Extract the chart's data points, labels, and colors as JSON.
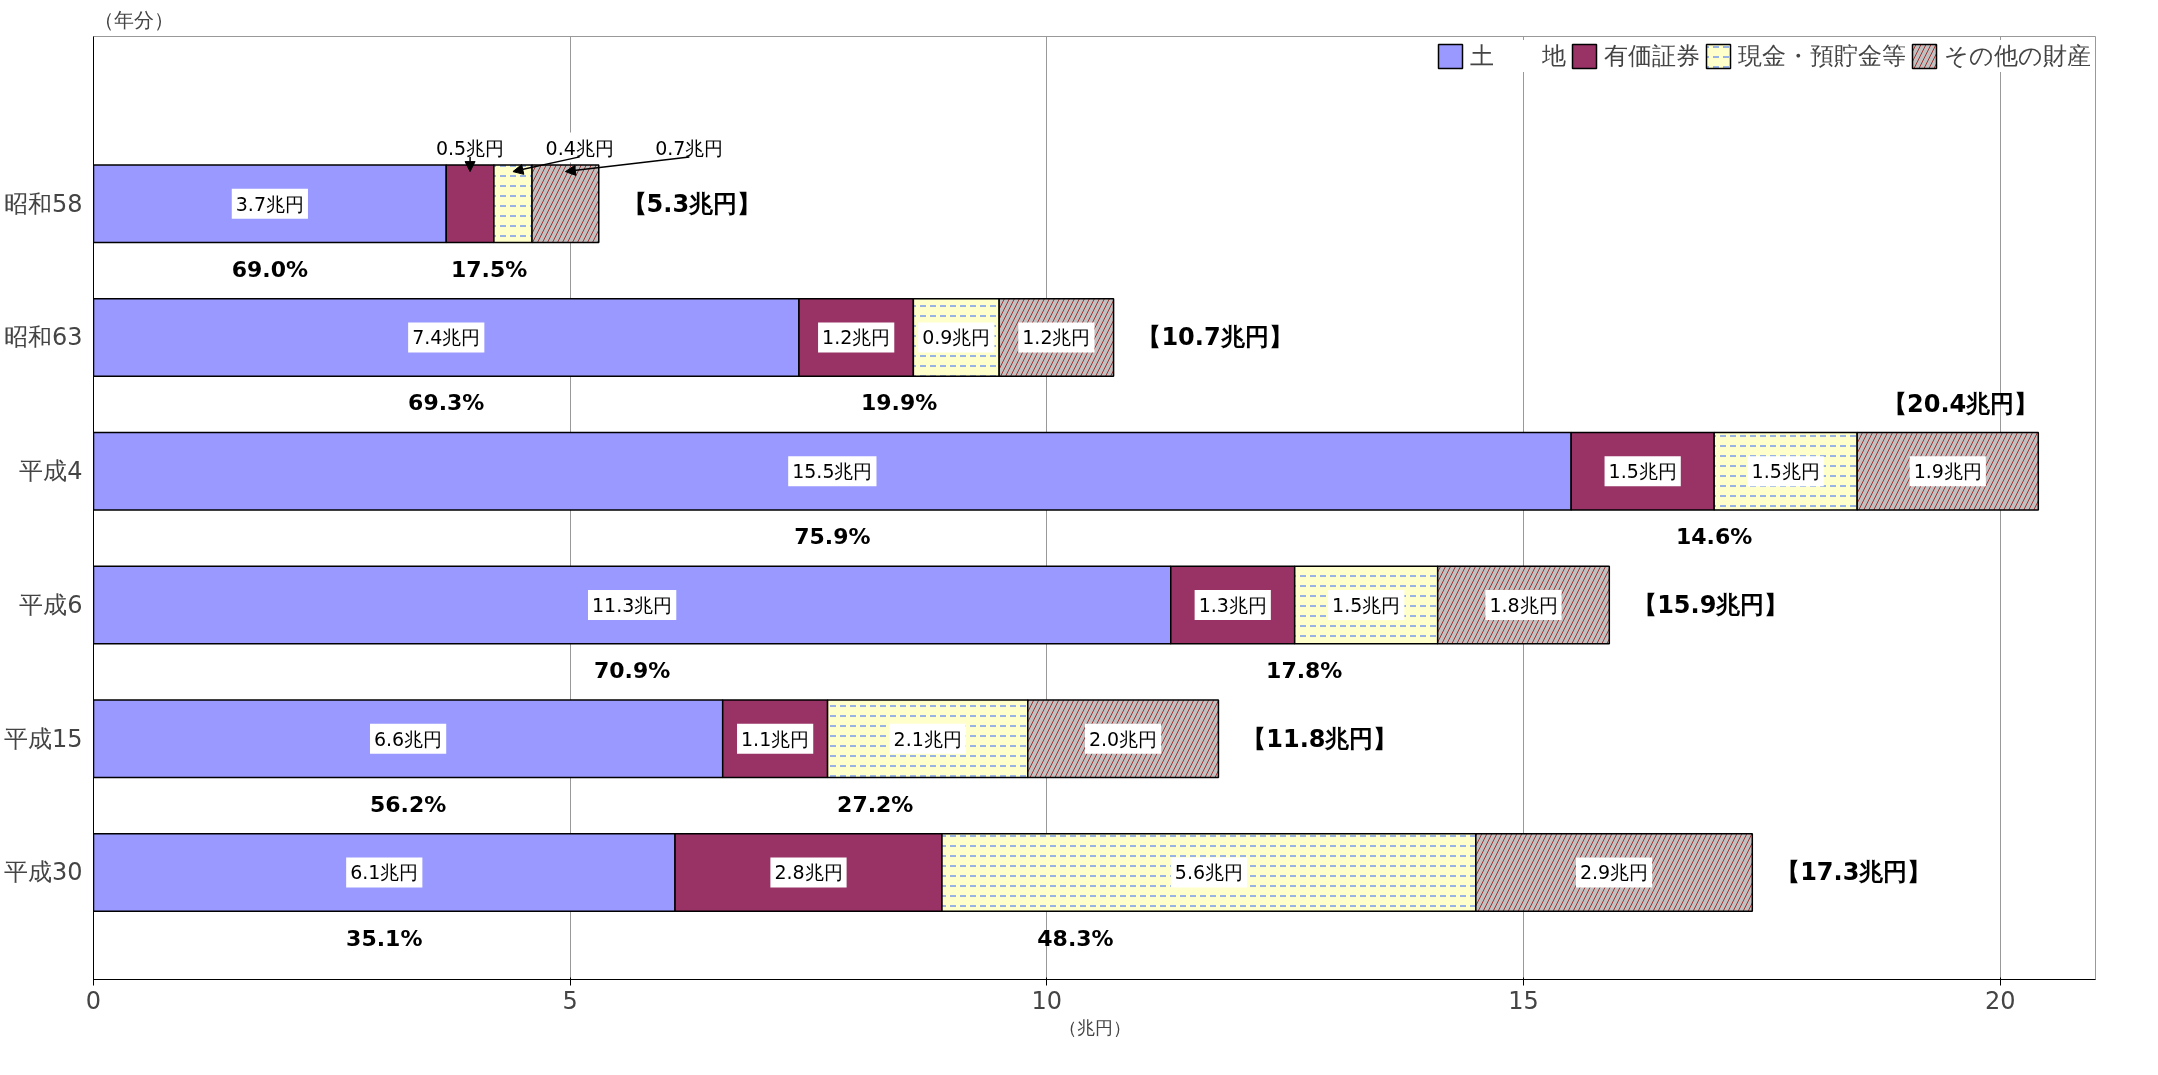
{
  "chart_data": {
    "type": "bar",
    "orientation": "horizontal",
    "stacked": true,
    "ylabel": "（年分）",
    "xlabel": "（兆円）",
    "categories": [
      "昭和58",
      "昭和63",
      "平成4",
      "平成6",
      "平成15",
      "平成30"
    ],
    "series": [
      {
        "name": "土　　地",
        "color": "#9999ff",
        "values": [
          3.7,
          7.4,
          15.5,
          11.3,
          6.6,
          6.1
        ],
        "value_labels": [
          "3.7兆円",
          "7.4兆円",
          "15.5兆円",
          "11.3兆円",
          "6.6兆円",
          "6.1兆円"
        ]
      },
      {
        "name": "有価証券",
        "color": "#993366",
        "values": [
          0.5,
          1.2,
          1.5,
          1.3,
          1.1,
          2.8
        ],
        "value_labels": [
          "0.5兆円",
          "1.2兆円",
          "1.5兆円",
          "1.3兆円",
          "1.1兆円",
          "2.8兆円"
        ]
      },
      {
        "name": "現金・預貯金等",
        "color": "#ffffcc",
        "values": [
          0.4,
          0.9,
          1.5,
          1.5,
          2.1,
          5.6
        ],
        "value_labels": [
          "0.4兆円",
          "0.9兆円",
          "1.5兆円",
          "1.5兆円",
          "2.1兆円",
          "5.6兆円"
        ]
      },
      {
        "name": "その他の財産",
        "color": "#c0c0c0",
        "values": [
          0.7,
          1.2,
          1.9,
          1.8,
          2.0,
          2.9
        ],
        "value_labels": [
          "0.7兆円",
          "1.2兆円",
          "1.9兆円",
          "1.8兆円",
          "2.0兆円",
          "2.9兆円"
        ]
      }
    ],
    "totals": [
      "【5.3兆円】",
      "【10.7兆円】",
      "【20.4兆円】",
      "【15.9兆円】",
      "【11.8兆円】",
      "【17.3兆円】"
    ],
    "annotations": [
      "69.0%",
      "17.5%",
      "69.3%",
      "19.9%",
      "75.9%",
      "14.6%",
      "70.9%",
      "17.8%",
      "56.2%",
      "27.2%",
      "35.1%",
      "48.3%"
    ],
    "xlim": [
      0,
      21
    ],
    "xticks": [
      0,
      5,
      10,
      15,
      20
    ],
    "grid": "x",
    "legend": "top right"
  }
}
